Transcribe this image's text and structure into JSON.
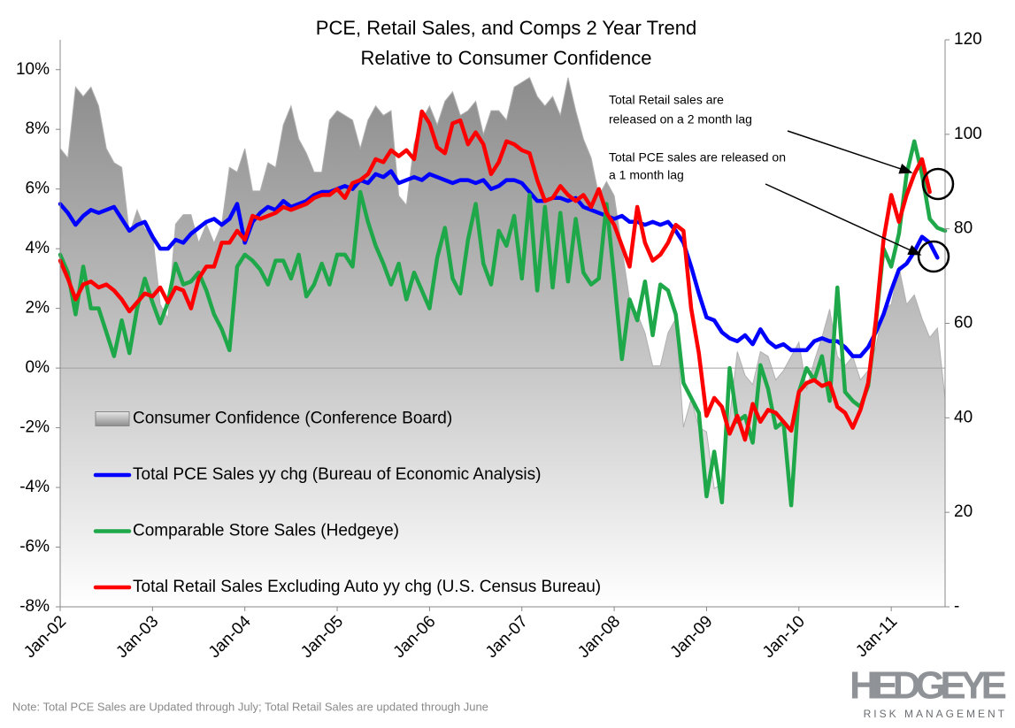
{
  "chart_data": {
    "type": "line",
    "title": [
      "PCE, Retail Sales, and Comps 2 Year Trend",
      "Relative to Consumer Confidence"
    ],
    "categories": [
      "Jan-02",
      null,
      null,
      null,
      null,
      null,
      null,
      null,
      null,
      null,
      null,
      null,
      "Jan-03",
      null,
      null,
      null,
      null,
      null,
      null,
      null,
      null,
      null,
      null,
      null,
      "Jan-04",
      null,
      null,
      null,
      null,
      null,
      null,
      null,
      null,
      null,
      null,
      null,
      "Jan-05",
      null,
      null,
      null,
      null,
      null,
      null,
      null,
      null,
      null,
      null,
      null,
      "Jan-06",
      null,
      null,
      null,
      null,
      null,
      null,
      null,
      null,
      null,
      null,
      null,
      "Jan-07",
      null,
      null,
      null,
      null,
      null,
      null,
      null,
      null,
      null,
      null,
      null,
      "Jan-08",
      null,
      null,
      null,
      null,
      null,
      null,
      null,
      null,
      null,
      null,
      null,
      "Jan-09",
      null,
      null,
      null,
      null,
      null,
      null,
      null,
      null,
      null,
      null,
      null,
      "Jan-10",
      null,
      null,
      null,
      null,
      null,
      null,
      null,
      null,
      null,
      null,
      null,
      "Jan-11",
      null,
      null,
      null,
      null,
      null,
      null,
      null
    ],
    "series": [
      {
        "name": "Consumer Confidence (Conference Board)",
        "color": "#9a9a9a",
        "type": "area",
        "axis": "y2",
        "values": [
          97,
          95,
          110,
          108,
          110,
          106,
          97,
          94,
          93,
          79,
          84,
          80,
          79,
          64,
          61,
          81,
          83,
          83,
          77,
          81,
          77,
          81,
          93,
          92,
          97,
          88,
          88,
          94,
          93,
          102,
          106,
          99,
          96,
          92,
          92,
          103,
          105,
          104,
          103,
          97,
          103,
          106,
          104,
          105,
          87,
          85,
          98,
          103,
          106,
          102,
          107,
          109,
          104,
          105,
          107,
          100,
          105,
          105,
          103,
          110,
          111,
          112,
          108,
          106,
          108,
          104,
          112,
          105,
          99,
          95,
          87,
          90,
          87,
          76,
          65,
          62,
          58,
          51,
          51,
          58,
          61,
          38,
          44,
          38,
          37,
          25,
          26,
          40,
          54,
          49,
          47,
          54,
          53,
          48,
          50,
          53,
          56,
          46,
          52,
          57,
          63,
          53,
          51,
          53,
          48,
          50,
          55,
          63,
          64,
          72,
          64,
          66,
          61,
          57,
          59,
          44
        ]
      },
      {
        "name": "Total PCE Sales yy chg (Bureau of Economic Analysis)",
        "color": "#0000ff",
        "values": [
          5.5,
          5.2,
          4.8,
          5.1,
          5.3,
          5.2,
          5.3,
          5.4,
          5.0,
          4.6,
          4.8,
          4.9,
          4.4,
          4.0,
          4.0,
          4.3,
          4.2,
          4.5,
          4.7,
          4.9,
          5.0,
          4.8,
          5.0,
          5.5,
          4.2,
          4.9,
          5.2,
          5.4,
          5.3,
          5.6,
          5.4,
          5.5,
          5.6,
          5.8,
          5.9,
          5.9,
          6.0,
          6.1,
          6.0,
          6.3,
          6.2,
          6.5,
          6.4,
          6.6,
          6.2,
          6.3,
          6.4,
          6.3,
          6.5,
          6.4,
          6.3,
          6.2,
          6.3,
          6.3,
          6.2,
          6.3,
          6.0,
          6.1,
          6.3,
          6.3,
          6.2,
          5.9,
          5.6,
          5.6,
          5.7,
          5.7,
          5.6,
          5.7,
          5.4,
          5.3,
          5.2,
          5.1,
          5.0,
          5.1,
          4.9,
          4.9,
          4.8,
          4.9,
          4.8,
          4.9,
          4.6,
          4.2,
          3.4,
          2.5,
          1.7,
          1.6,
          1.2,
          1.0,
          0.9,
          1.1,
          0.8,
          1.3,
          0.9,
          0.7,
          0.8,
          0.6,
          0.6,
          0.6,
          0.9,
          1.0,
          0.9,
          0.9,
          0.7,
          0.4,
          0.4,
          0.7,
          1.2,
          1.8,
          2.6,
          3.3,
          3.5,
          3.9,
          4.4,
          4.2,
          3.7,
          null
        ]
      },
      {
        "name": "Comparable Store Sales (Hedgeye)",
        "color": "#1fa84a",
        "values": [
          3.8,
          3.2,
          1.8,
          3.4,
          2.0,
          2.0,
          1.2,
          0.4,
          1.6,
          0.5,
          2.0,
          3.0,
          2.2,
          1.5,
          2.2,
          3.5,
          2.8,
          2.9,
          3.2,
          2.6,
          1.8,
          1.3,
          0.6,
          3.4,
          3.8,
          3.6,
          3.3,
          2.8,
          3.6,
          3.6,
          3.0,
          3.8,
          2.4,
          2.8,
          3.5,
          2.8,
          3.8,
          3.8,
          3.4,
          5.9,
          4.9,
          4.1,
          3.5,
          2.8,
          3.5,
          2.3,
          3.2,
          2.6,
          2.0,
          3.7,
          4.7,
          3.0,
          2.5,
          4.3,
          5.5,
          3.5,
          2.8,
          4.6,
          4.1,
          5.1,
          3.0,
          5.8,
          2.6,
          5.4,
          2.7,
          5.2,
          2.9,
          5.0,
          3.2,
          2.8,
          3.0,
          5.5,
          3.0,
          0.3,
          2.3,
          1.6,
          2.9,
          1.1,
          2.8,
          2.6,
          1.8,
          -0.5,
          -1.0,
          -1.5,
          -4.3,
          -2.8,
          -4.5,
          0.0,
          -1.8,
          -1.6,
          -2.5,
          0.1,
          -0.7,
          -2.0,
          -1.8,
          -4.6,
          -0.8,
          0.0,
          -0.4,
          0.4,
          -1.1,
          2.7,
          -0.8,
          -1.1,
          -1.3,
          -0.6,
          1.5,
          4.0,
          3.4,
          4.5,
          6.5,
          7.6,
          6.5,
          5.0,
          4.7,
          4.6
        ]
      },
      {
        "name": "Total Retail Sales Excluding Auto yy chg (U.S. Census Bureau)",
        "color": "#ff0000",
        "values": [
          3.6,
          3.0,
          2.3,
          2.8,
          2.9,
          2.7,
          2.8,
          2.6,
          2.3,
          1.9,
          2.2,
          2.5,
          2.4,
          2.7,
          2.2,
          2.7,
          2.6,
          2.0,
          3.0,
          3.4,
          3.4,
          4.2,
          4.2,
          4.6,
          4.3,
          5.1,
          5.0,
          5.1,
          5.2,
          5.4,
          5.3,
          5.4,
          5.5,
          5.7,
          5.8,
          5.8,
          6.0,
          5.7,
          6.2,
          6.3,
          6.5,
          7.0,
          6.9,
          7.3,
          7.1,
          7.3,
          7.0,
          8.6,
          8.2,
          7.4,
          7.2,
          8.2,
          8.3,
          7.5,
          7.9,
          7.5,
          6.5,
          6.9,
          7.6,
          7.5,
          7.3,
          7.2,
          6.3,
          5.6,
          5.7,
          6.1,
          5.8,
          5.6,
          5.8,
          5.4,
          6.0,
          5.2,
          4.8,
          4.1,
          3.4,
          5.4,
          4.2,
          3.6,
          3.8,
          4.2,
          4.8,
          4.6,
          2.0,
          0.5,
          -1.6,
          -1.0,
          -1.3,
          -2.2,
          -1.6,
          -2.4,
          -1.2,
          -1.8,
          -1.4,
          -1.5,
          -1.8,
          -2.1,
          -0.8,
          -0.5,
          -0.4,
          -0.6,
          -0.5,
          -1.3,
          -1.5,
          -2.0,
          -1.4,
          -0.5,
          1.6,
          4.3,
          5.8,
          4.9,
          5.8,
          6.5,
          7.0,
          5.9,
          null,
          null
        ]
      }
    ],
    "ylim": [
      -8,
      11
    ],
    "yticks": [
      {
        "value": -8,
        "label": "-8%"
      },
      {
        "value": -6,
        "label": "-6%"
      },
      {
        "value": -4,
        "label": "-4%"
      },
      {
        "value": -2,
        "label": "-2%"
      },
      {
        "value": 0,
        "label": "0%"
      },
      {
        "value": 2,
        "label": "2%"
      },
      {
        "value": 4,
        "label": "4%"
      },
      {
        "value": 6,
        "label": "6%"
      },
      {
        "value": 8,
        "label": "8%"
      },
      {
        "value": 10,
        "label": "10%"
      }
    ],
    "y2lim": [
      0,
      120
    ],
    "y2ticks": [
      {
        "value": 0,
        "label": "-"
      },
      20,
      40,
      60,
      80,
      100,
      120
    ],
    "legend": "lower left",
    "annotations": [
      {
        "lines": [
          "Total Retail sales are",
          "released on a 2 month lag"
        ]
      },
      {
        "lines": [
          "Total PCE sales are released on",
          "a 1 month lag"
        ]
      }
    ],
    "note": "Note: Total PCE Sales are Updated through July; Total Retail Sales are updated through June",
    "logo": [
      "HEDGEYE",
      "RISK MANAGEMENT"
    ]
  }
}
